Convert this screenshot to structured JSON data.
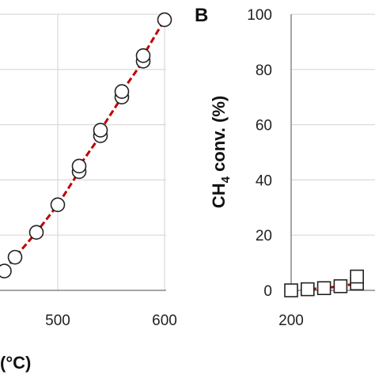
{
  "chart_data": [
    {
      "type": "scatter",
      "panel_label": "",
      "xlabel": "(°C)",
      "ylabel": "",
      "xlim": [
        450,
        600
      ],
      "ylim": [
        0,
        100
      ],
      "x_ticks": [
        "500",
        "600"
      ],
      "grid": true,
      "line_color": "#c00000",
      "line_style": "dashed",
      "marker": "circle",
      "series": [
        {
          "x": [
            450,
            460,
            480,
            500,
            520,
            520,
            540,
            540,
            560,
            560,
            580,
            580,
            600
          ],
          "y": [
            7,
            12,
            21,
            31,
            43,
            45,
            56,
            58,
            70,
            72,
            83,
            85,
            98
          ]
        }
      ]
    },
    {
      "type": "scatter",
      "panel_label": "B",
      "xlabel": "",
      "ylabel_main": "CH",
      "ylabel_sub": "4",
      "ylabel_rest": " conv. (%)",
      "xlim": [
        200,
        300
      ],
      "ylim": [
        0,
        100
      ],
      "y_ticks": [
        "0",
        "20",
        "40",
        "60",
        "80",
        "100"
      ],
      "x_ticks": [
        "200"
      ],
      "grid": true,
      "line_color": "#c00000",
      "line_style": "dashed",
      "marker": "square",
      "series": [
        {
          "x": [
            200,
            220,
            240,
            260,
            280,
            280
          ],
          "y": [
            0,
            0.4,
            0.8,
            1.5,
            2.5,
            5
          ]
        }
      ]
    }
  ]
}
